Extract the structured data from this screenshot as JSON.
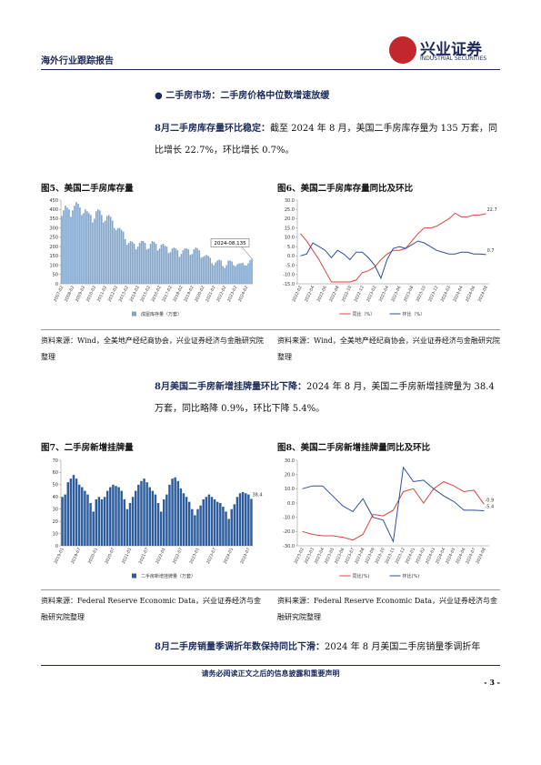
{
  "header": {
    "report_type": "海外行业跟踪报告",
    "logo_cn": "兴业证券",
    "logo_en": "INDUSTRIAL SECURITIES"
  },
  "section": "二手房市场：二手房价格中位数增速放缓",
  "paragraphs": [
    {
      "lead": "8月二手房库存量环比稳定：",
      "text": "截至 2024 年 8 月，美国二手房库存量为 135 万套，同比增长 22.7%，环比增长 0.7%。"
    },
    {
      "lead": "8月美国二手房新增挂牌量环比下降：",
      "text": "2024 年 8 月，美国二手房新增挂牌量为 38.4 万套，同比略降 0.9%，环比下降 5.4%。"
    },
    {
      "lead": "8月二手房销量季调折年数保持同比下滑：",
      "text": "2024 年 8 月美国二手房销量季调折年"
    }
  ],
  "sources": [
    "资料来源：Wind，全美地产经纪商协会，兴业证券经济与金融研究院整理",
    "资料来源：Federal Reserve Economic Data，兴业证券经济与金融研究院整理"
  ],
  "footer": {
    "disclaimer": "请务必阅读正文之后的信息披露和重要声明",
    "page": "- 3 -"
  },
  "chart_data": [
    {
      "type": "bar",
      "title": "图5、美国二手房库存量",
      "annotation": "2024-08,135",
      "categories": [
        "2007-02",
        null,
        null,
        null,
        null,
        null,
        "2008-02",
        null,
        null,
        null,
        null,
        null,
        "2009-02",
        null,
        null,
        null,
        null,
        null,
        "2010-02",
        null,
        null,
        null,
        null,
        null,
        "2011-02",
        null,
        null,
        null,
        null,
        null,
        "2012-02",
        null,
        null,
        null,
        null,
        null,
        "2013-02",
        null,
        null,
        null,
        null,
        null,
        "2014-02",
        null,
        null,
        null,
        null,
        null,
        "2015-02",
        null,
        null,
        null,
        null,
        null,
        "2016-02",
        null,
        null,
        null,
        null,
        null,
        "2017-02",
        null,
        null,
        null,
        null,
        null,
        "2018-02",
        null,
        null,
        null,
        null,
        null,
        "2019-02",
        null,
        null,
        null,
        null,
        null,
        "2020-02",
        null,
        null,
        null,
        null,
        null,
        "2021-02",
        null,
        null,
        null,
        null,
        null,
        "2022-02",
        null,
        null,
        null,
        null,
        null,
        "2023-02",
        null,
        null,
        null,
        null,
        null,
        "2024-02",
        null,
        null,
        null
      ],
      "series": [
        {
          "name": "成屋库存量（万套）",
          "color": "#7aa6d6",
          "values": [
            365,
            395,
            420,
            410,
            400,
            360,
            395,
            420,
            440,
            430,
            410,
            370,
            380,
            400,
            390,
            380,
            370,
            330,
            350,
            390,
            400,
            395,
            370,
            330,
            340,
            365,
            370,
            360,
            340,
            300,
            290,
            300,
            300,
            290,
            280,
            240,
            210,
            220,
            230,
            225,
            215,
            185,
            200,
            220,
            230,
            230,
            220,
            185,
            190,
            215,
            230,
            225,
            215,
            180,
            190,
            210,
            215,
            205,
            200,
            165,
            170,
            190,
            195,
            190,
            180,
            145,
            160,
            180,
            190,
            190,
            185,
            155,
            160,
            185,
            195,
            190,
            180,
            140,
            145,
            150,
            155,
            150,
            140,
            110,
            100,
            115,
            125,
            130,
            125,
            95,
            85,
            100,
            125,
            125,
            120,
            100,
            95,
            105,
            110,
            110,
            113,
            100,
            98,
            110,
            127,
            135
          ]
        }
      ],
      "ylim": [
        0,
        450
      ],
      "yticks": [
        0,
        50,
        100,
        150,
        200,
        250,
        300,
        350,
        400,
        450
      ],
      "grid": false
    },
    {
      "type": "line",
      "title": "图6、美国二手房库存量同比及环比",
      "end_labels": true,
      "categories": [
        "2022-02",
        null,
        "2022-04",
        null,
        "2022-06",
        null,
        "2022-08",
        null,
        "2022-10",
        null,
        "2022-12",
        null,
        "2023-02",
        null,
        "2023-04",
        null,
        "2023-06",
        null,
        "2023-08",
        null,
        "2023-10",
        null,
        "2023-12",
        null,
        "2024-02",
        null,
        "2024-04",
        null,
        "2024-06",
        null,
        "2024-08"
      ],
      "series": [
        {
          "name": "同比（%）",
          "color": "#d9453c",
          "values": [
            12,
            8,
            3,
            -2,
            -8,
            -14,
            -14,
            -14,
            -14,
            -13,
            -9,
            -8,
            -6,
            -2,
            1,
            3,
            3,
            4,
            8,
            12,
            15,
            15,
            16,
            18,
            20,
            23,
            21,
            21,
            22,
            22,
            22.7
          ]
        },
        {
          "name": "环比（%）",
          "color": "#2f4f9a",
          "values": [
            0,
            1,
            7,
            5,
            3,
            -1,
            3,
            1,
            -2,
            2,
            2,
            -1,
            -5,
            -12,
            -2,
            4,
            5,
            4,
            6,
            8,
            7,
            5,
            3,
            2,
            1,
            1,
            2,
            2,
            1,
            1,
            0.7
          ]
        }
      ],
      "ylim": [
        -15,
        30
      ],
      "yticks": [
        {
          "value": -15,
          "label": "-15.0"
        },
        {
          "value": -10,
          "label": "-10.0"
        },
        {
          "value": -5,
          "label": "-5.0"
        },
        {
          "value": 0,
          "label": "0.0"
        },
        {
          "value": 5,
          "label": "5.0"
        },
        {
          "value": 10,
          "label": "10.0"
        },
        {
          "value": 15,
          "label": "15.0"
        },
        {
          "value": 20,
          "label": "20.0"
        },
        {
          "value": 25,
          "label": "25.0"
        },
        {
          "value": 30,
          "label": "30.0"
        }
      ],
      "grid": false
    },
    {
      "type": "bar",
      "title": "图7、二手房新增挂牌量",
      "end_labels": true,
      "categories": [
        "2019-01",
        null,
        null,
        null,
        null,
        null,
        "2019-07",
        null,
        null,
        null,
        null,
        null,
        "2020-01",
        null,
        null,
        null,
        null,
        null,
        "2020-07",
        null,
        null,
        null,
        null,
        null,
        "2021-01",
        null,
        null,
        null,
        null,
        null,
        "2021-07",
        null,
        null,
        null,
        null,
        null,
        "2022-01",
        null,
        null,
        null,
        null,
        null,
        "2022-07",
        null,
        null,
        null,
        null,
        null,
        "2023-01",
        null,
        null,
        null,
        null,
        null,
        "2023-07",
        null,
        null,
        null,
        null,
        null,
        "2024-01",
        null,
        null,
        null,
        null,
        null,
        "2024-07",
        null
      ],
      "series": [
        {
          "name": "二手房新增挂牌量（万套）",
          "color": "#2e5d9e",
          "values": [
            40,
            42,
            52,
            55,
            58,
            55,
            50,
            48,
            45,
            42,
            35,
            28,
            38,
            40,
            38,
            40,
            45,
            48,
            50,
            49,
            48,
            45,
            38,
            30,
            35,
            40,
            45,
            50,
            53,
            55,
            52,
            48,
            45,
            42,
            35,
            28,
            38,
            42,
            50,
            55,
            56,
            53,
            47,
            43,
            40,
            36,
            30,
            25,
            30,
            33,
            38,
            40,
            42,
            40,
            38,
            36,
            35,
            32,
            28,
            22,
            30,
            34,
            40,
            43,
            44,
            43,
            42,
            38.4
          ]
        }
      ],
      "ylim": [
        0,
        70
      ],
      "yticks": [
        0,
        10,
        20,
        30,
        40,
        50,
        60,
        70
      ],
      "grid": false
    },
    {
      "type": "line",
      "title": "图8、美国二手房新增挂牌量同比及环比",
      "end_labels": true,
      "categories": [
        "2023-02",
        "2023-03",
        "2023-04",
        "2023-05",
        "2023-06",
        "2023-07",
        "2023-08",
        "2023-09",
        "2023-10",
        "2023-11",
        "2023-12",
        "2024-01",
        "2024-02",
        "2024-03",
        "2024-04",
        "2024-05",
        "2024-06",
        "2024-07",
        "2024-08"
      ],
      "series": [
        {
          "name": "同比(%)",
          "color": "#d9453c",
          "values": [
            -20,
            -22,
            -23,
            -23,
            -24,
            -26,
            -22,
            -8,
            -9,
            -5,
            8,
            10,
            0,
            10,
            15,
            12,
            8,
            9,
            -0.9
          ]
        },
        {
          "name": "环比(%)",
          "color": "#2f4f9a",
          "values": [
            10,
            12,
            12,
            5,
            -2,
            -6,
            3,
            -10,
            -12,
            -27,
            25,
            15,
            16,
            10,
            5,
            1,
            -5,
            -5,
            -5.4
          ]
        }
      ],
      "ylim": [
        -30,
        30
      ],
      "yticks": [
        {
          "value": -30,
          "label": "-30.0"
        },
        {
          "value": -20,
          "label": "-20.0"
        },
        {
          "value": -10,
          "label": "-10.0"
        },
        {
          "value": 0,
          "label": "0.0"
        },
        {
          "value": 10,
          "label": "10.0"
        },
        {
          "value": 20,
          "label": "20.0"
        },
        {
          "value": 30,
          "label": "30.0"
        }
      ],
      "grid": false
    }
  ]
}
